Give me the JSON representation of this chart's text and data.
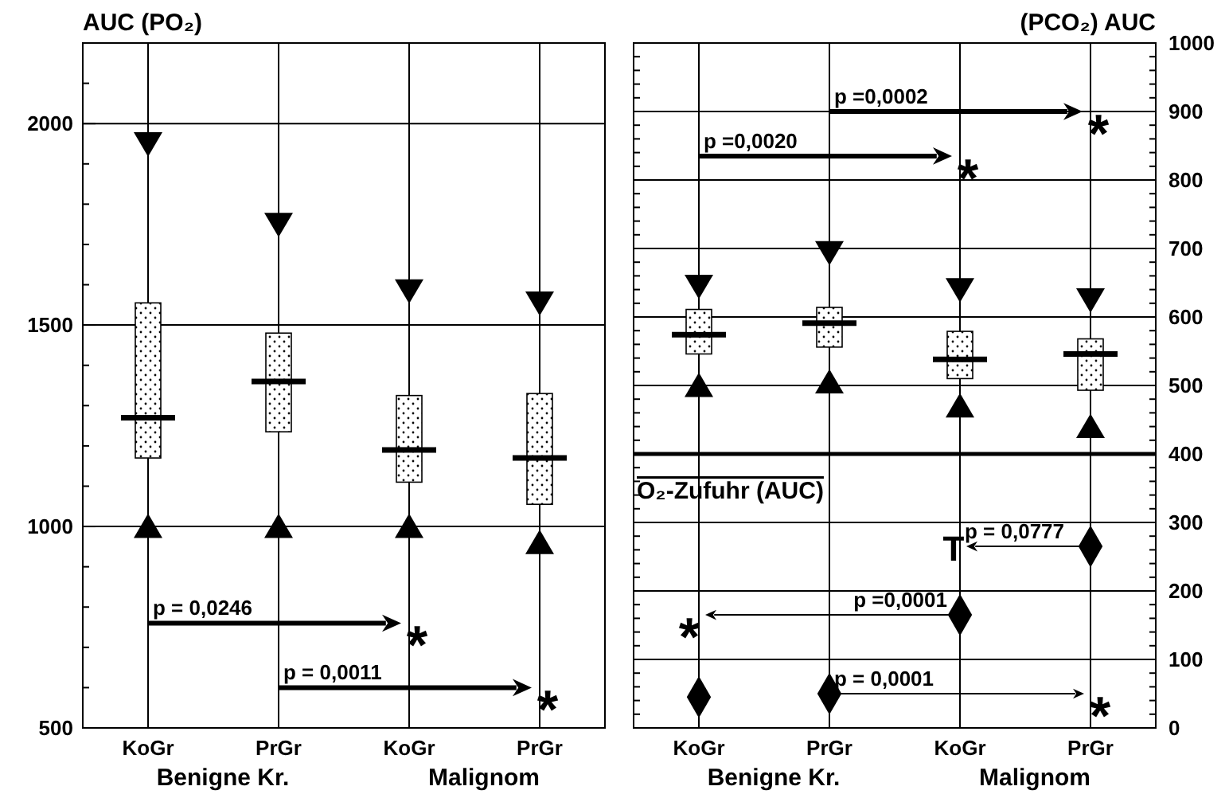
{
  "chart_data": [
    {
      "type": "box",
      "ylabel": "AUC (PO₂)",
      "categories": [
        "KoGr",
        "PrGr",
        "KoGr",
        "PrGr"
      ],
      "color": "#000000",
      "boxes": [
        {
          "low": 1000,
          "q1": 1170,
          "median": 1270,
          "q3": 1555,
          "high": 1950
        },
        {
          "low": 1000,
          "q1": 1235,
          "median": 1360,
          "q3": 1480,
          "high": 1750
        },
        {
          "low": 1000,
          "q1": 1110,
          "median": 1190,
          "q3": 1325,
          "high": 1585
        },
        {
          "low": 960,
          "q1": 1055,
          "median": 1170,
          "q3": 1330,
          "high": 1555
        }
      ],
      "ylim": [
        500,
        2200
      ],
      "yticks": [
        500,
        {
          "value": 600,
          "label": null
        },
        {
          "value": 700,
          "label": null
        },
        {
          "value": 800,
          "label": null
        },
        {
          "value": 900,
          "label": null
        },
        1000,
        {
          "value": 1100,
          "label": null
        },
        {
          "value": 1200,
          "label": null
        },
        {
          "value": 1300,
          "label": null
        },
        {
          "value": 1400,
          "label": null
        },
        1500,
        {
          "value": 1600,
          "label": null
        },
        {
          "value": 1700,
          "label": null
        },
        {
          "value": 1800,
          "label": null
        },
        {
          "value": 1900,
          "label": null
        },
        2000,
        {
          "value": 2100,
          "label": null
        }
      ],
      "grid": true,
      "annotations": [
        "p = 0,0246",
        "*",
        "p = 0,0011",
        "*",
        "Benigne Kr.",
        "Malignom"
      ]
    },
    {
      "type": "box",
      "y2label": "(PCO₂) AUC",
      "categories": [
        "KoGr",
        "PrGr",
        "KoGr",
        "PrGr"
      ],
      "series": [
        {
          "axis": "y2",
          "color": "#000000",
          "boxes": [
            {
              "low": 500,
              "q1": 546,
              "median": 574,
              "q3": 611,
              "high": 645
            },
            {
              "low": 505,
              "q1": 556,
              "median": 591,
              "q3": 614,
              "high": 694
            },
            {
              "low": 470,
              "q1": 510,
              "median": 538,
              "q3": 579,
              "high": 640
            },
            {
              "low": 440,
              "q1": 493,
              "median": 546,
              "q3": 568,
              "high": 625
            }
          ]
        },
        {
          "type": "scatter",
          "axis": "y2",
          "color": "#000000",
          "marker": "diamond",
          "values": [
            45,
            50,
            165,
            265
          ]
        }
      ],
      "y2lim": [
        0,
        1000
      ],
      "y2ticks": [
        0,
        {
          "value": 20,
          "label": null
        },
        {
          "value": 40,
          "label": null
        },
        {
          "value": 60,
          "label": null
        },
        {
          "value": 80,
          "label": null
        },
        100,
        {
          "value": 120,
          "label": null
        },
        {
          "value": 140,
          "label": null
        },
        {
          "value": 160,
          "label": null
        },
        {
          "value": 180,
          "label": null
        },
        200,
        {
          "value": 220,
          "label": null
        },
        {
          "value": 240,
          "label": null
        },
        {
          "value": 260,
          "label": null
        },
        {
          "value": 280,
          "label": null
        },
        300,
        {
          "value": 320,
          "label": null
        },
        {
          "value": 340,
          "label": null
        },
        {
          "value": 360,
          "label": null
        },
        {
          "value": 380,
          "label": null
        },
        400,
        {
          "value": 420,
          "label": null
        },
        {
          "value": 440,
          "label": null
        },
        {
          "value": 460,
          "label": null
        },
        {
          "value": 480,
          "label": null
        },
        500,
        {
          "value": 520,
          "label": null
        },
        {
          "value": 540,
          "label": null
        },
        {
          "value": 560,
          "label": null
        },
        {
          "value": 580,
          "label": null
        },
        600,
        {
          "value": 620,
          "label": null
        },
        {
          "value": 640,
          "label": null
        },
        {
          "value": 660,
          "label": null
        },
        {
          "value": 680,
          "label": null
        },
        700,
        {
          "value": 720,
          "label": null
        },
        {
          "value": 740,
          "label": null
        },
        {
          "value": 760,
          "label": null
        },
        {
          "value": 780,
          "label": null
        },
        800,
        {
          "value": 820,
          "label": null
        },
        {
          "value": 840,
          "label": null
        },
        {
          "value": 860,
          "label": null
        },
        {
          "value": 880,
          "label": null
        },
        900,
        {
          "value": 920,
          "label": null
        },
        {
          "value": 940,
          "label": null
        },
        {
          "value": 960,
          "label": null
        },
        {
          "value": 980,
          "label": null
        },
        1000
      ],
      "grid": true,
      "ref_lines": [
        {
          "axis": "y2",
          "value": 400
        }
      ],
      "annotations": [
        "p =0,0002",
        "*",
        "p =0,0020",
        "*",
        "p = 0,0777",
        "T",
        "p =0,0001",
        "*",
        "p = 0,0001",
        "*",
        "O₂-Zufuhr (AUC)",
        "Benigne Kr.",
        "Malignom"
      ]
    }
  ]
}
